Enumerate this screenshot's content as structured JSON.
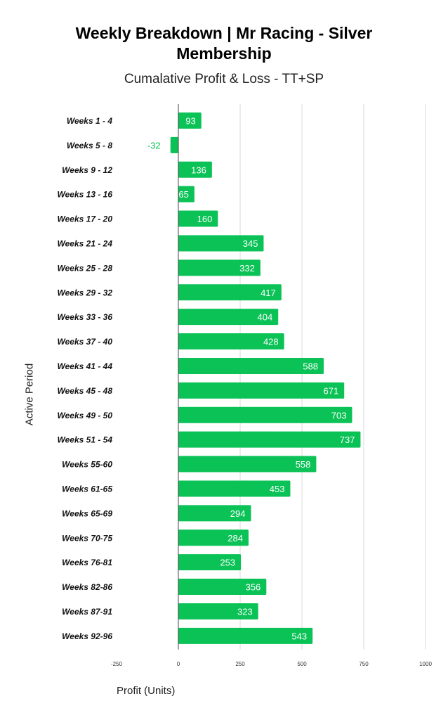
{
  "chart_data": {
    "type": "bar",
    "orientation": "horizontal",
    "title_lines": [
      "Weekly Breakdown | Mr Racing - Silver",
      "Membership"
    ],
    "subtitle": "Cumalative Profit & Loss - TT+SP",
    "xlabel": "Profit (Units)",
    "ylabel": "Active Period",
    "xlim": [
      -250,
      1000
    ],
    "xticks": [
      -250,
      0,
      250,
      500,
      750,
      1000
    ],
    "grid": true,
    "bar_color": "#0ac256",
    "negative_label_color": "#0ac256",
    "categories": [
      "Weeks 1 - 4",
      "Weeks 5 - 8",
      "Weeks 9 - 12",
      "Weeks 13 - 16",
      "Weeks 17 - 20",
      "Weeks 21 - 24",
      "Weeks 25 - 28",
      "Weeks 29 - 32",
      "Weeks 33 - 36",
      "Weeks 37 - 40",
      "Weeks 41 - 44",
      "Weeks 45 - 48",
      "Weeks 49 - 50",
      "Weeks 51 - 54",
      "Weeks 55-60",
      "Weeks 61-65",
      "Weeks 65-69",
      "Weeks 70-75",
      "Weeks 76-81",
      "Weeks 82-86",
      "Weeks 87-91",
      "Weeks 92-96"
    ],
    "values": [
      93,
      -32,
      136,
      65,
      160,
      345,
      332,
      417,
      404,
      428,
      588,
      671,
      703,
      737,
      558,
      453,
      294,
      284,
      253,
      356,
      323,
      543
    ]
  }
}
